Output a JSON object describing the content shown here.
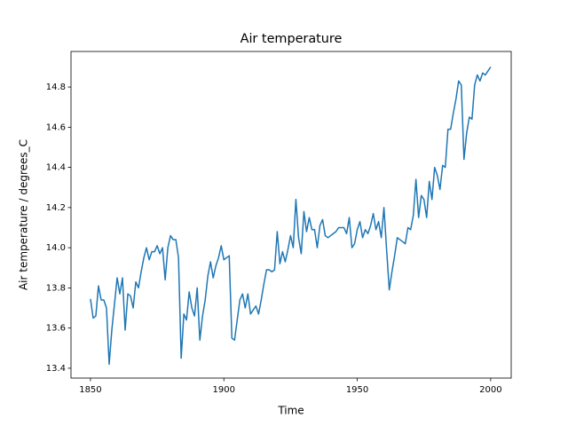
{
  "chart_data": {
    "type": "line",
    "title": "Air temperature",
    "x_label": "Time",
    "y_label": "Air temperature / degrees_C",
    "x": [
      1850,
      1851,
      1852,
      1853,
      1854,
      1855,
      1856,
      1857,
      1858,
      1859,
      1860,
      1861,
      1862,
      1863,
      1864,
      1865,
      1866,
      1867,
      1868,
      1869,
      1870,
      1871,
      1872,
      1873,
      1874,
      1875,
      1876,
      1877,
      1878,
      1879,
      1880,
      1881,
      1882,
      1883,
      1884,
      1885,
      1886,
      1887,
      1888,
      1889,
      1890,
      1891,
      1892,
      1893,
      1894,
      1895,
      1896,
      1897,
      1898,
      1899,
      1900,
      1901,
      1902,
      1903,
      1904,
      1905,
      1906,
      1907,
      1908,
      1909,
      1910,
      1911,
      1912,
      1913,
      1914,
      1915,
      1916,
      1917,
      1918,
      1919,
      1920,
      1921,
      1922,
      1923,
      1924,
      1925,
      1926,
      1927,
      1928,
      1929,
      1930,
      1931,
      1932,
      1933,
      1934,
      1935,
      1936,
      1937,
      1938,
      1939,
      1940,
      1941,
      1942,
      1943,
      1944,
      1945,
      1946,
      1947,
      1948,
      1949,
      1950,
      1951,
      1952,
      1953,
      1954,
      1955,
      1956,
      1957,
      1958,
      1959,
      1960,
      1961,
      1962,
      1963,
      1964,
      1965,
      1966,
      1967,
      1968,
      1969,
      1970,
      1971,
      1972,
      1973,
      1974,
      1975,
      1976,
      1977,
      1978,
      1979,
      1980,
      1981,
      1982,
      1983,
      1984,
      1985,
      1986,
      1987,
      1988,
      1989,
      1990,
      1991,
      1992,
      1993,
      1994,
      1995,
      1996,
      1997,
      1998,
      1999,
      2000
    ],
    "series": [
      {
        "color": "#1f77b4",
        "values": [
          13.745,
          13.65,
          13.66,
          13.81,
          13.74,
          13.74,
          13.7,
          13.42,
          13.59,
          13.72,
          13.85,
          13.77,
          13.85,
          13.59,
          13.77,
          13.76,
          13.7,
          13.83,
          13.8,
          13.88,
          13.95,
          14.0,
          13.94,
          13.98,
          13.98,
          14.01,
          13.97,
          14.0,
          13.84,
          14.0,
          14.06,
          14.04,
          14.04,
          13.95,
          13.45,
          13.67,
          13.64,
          13.78,
          13.7,
          13.66,
          13.8,
          13.54,
          13.66,
          13.74,
          13.86,
          13.93,
          13.85,
          13.91,
          13.95,
          14.01,
          13.94,
          13.95,
          13.96,
          13.55,
          13.54,
          13.64,
          13.74,
          13.77,
          13.7,
          13.77,
          13.67,
          13.69,
          13.71,
          13.67,
          13.74,
          13.82,
          13.89,
          13.89,
          13.88,
          13.89,
          14.08,
          13.92,
          13.98,
          13.93,
          13.99,
          14.06,
          14.0,
          14.24,
          14.05,
          13.97,
          14.18,
          14.08,
          14.15,
          14.09,
          14.09,
          14.0,
          14.11,
          14.14,
          14.06,
          14.05,
          14.06,
          14.07,
          14.08,
          14.1,
          14.1,
          14.1,
          14.07,
          14.15,
          14.0,
          14.02,
          14.09,
          14.13,
          14.05,
          14.09,
          14.07,
          14.11,
          14.17,
          14.09,
          14.13,
          14.05,
          14.2,
          13.99,
          13.79,
          13.88,
          13.96,
          14.05,
          14.04,
          14.03,
          14.02,
          14.1,
          14.09,
          14.16,
          14.34,
          14.15,
          14.26,
          14.24,
          14.15,
          14.33,
          14.24,
          14.4,
          14.36,
          14.29,
          14.41,
          14.4,
          14.59,
          14.59,
          14.67,
          14.74,
          14.83,
          14.81,
          14.44,
          14.57,
          14.65,
          14.64,
          14.81,
          14.86,
          14.83,
          14.87,
          14.86,
          14.88,
          14.9
        ]
      }
    ],
    "xlim": [
      1842.7,
      2007.7
    ],
    "ylim": [
      13.351,
      14.977
    ],
    "xticks": [
      1850,
      1900,
      1950,
      2000
    ],
    "yticks": [
      13.4,
      13.6,
      13.8,
      {
        "value": 14.0,
        "label": "14.0"
      },
      14.2,
      14.4,
      14.6,
      14.8
    ],
    "grid": false
  }
}
